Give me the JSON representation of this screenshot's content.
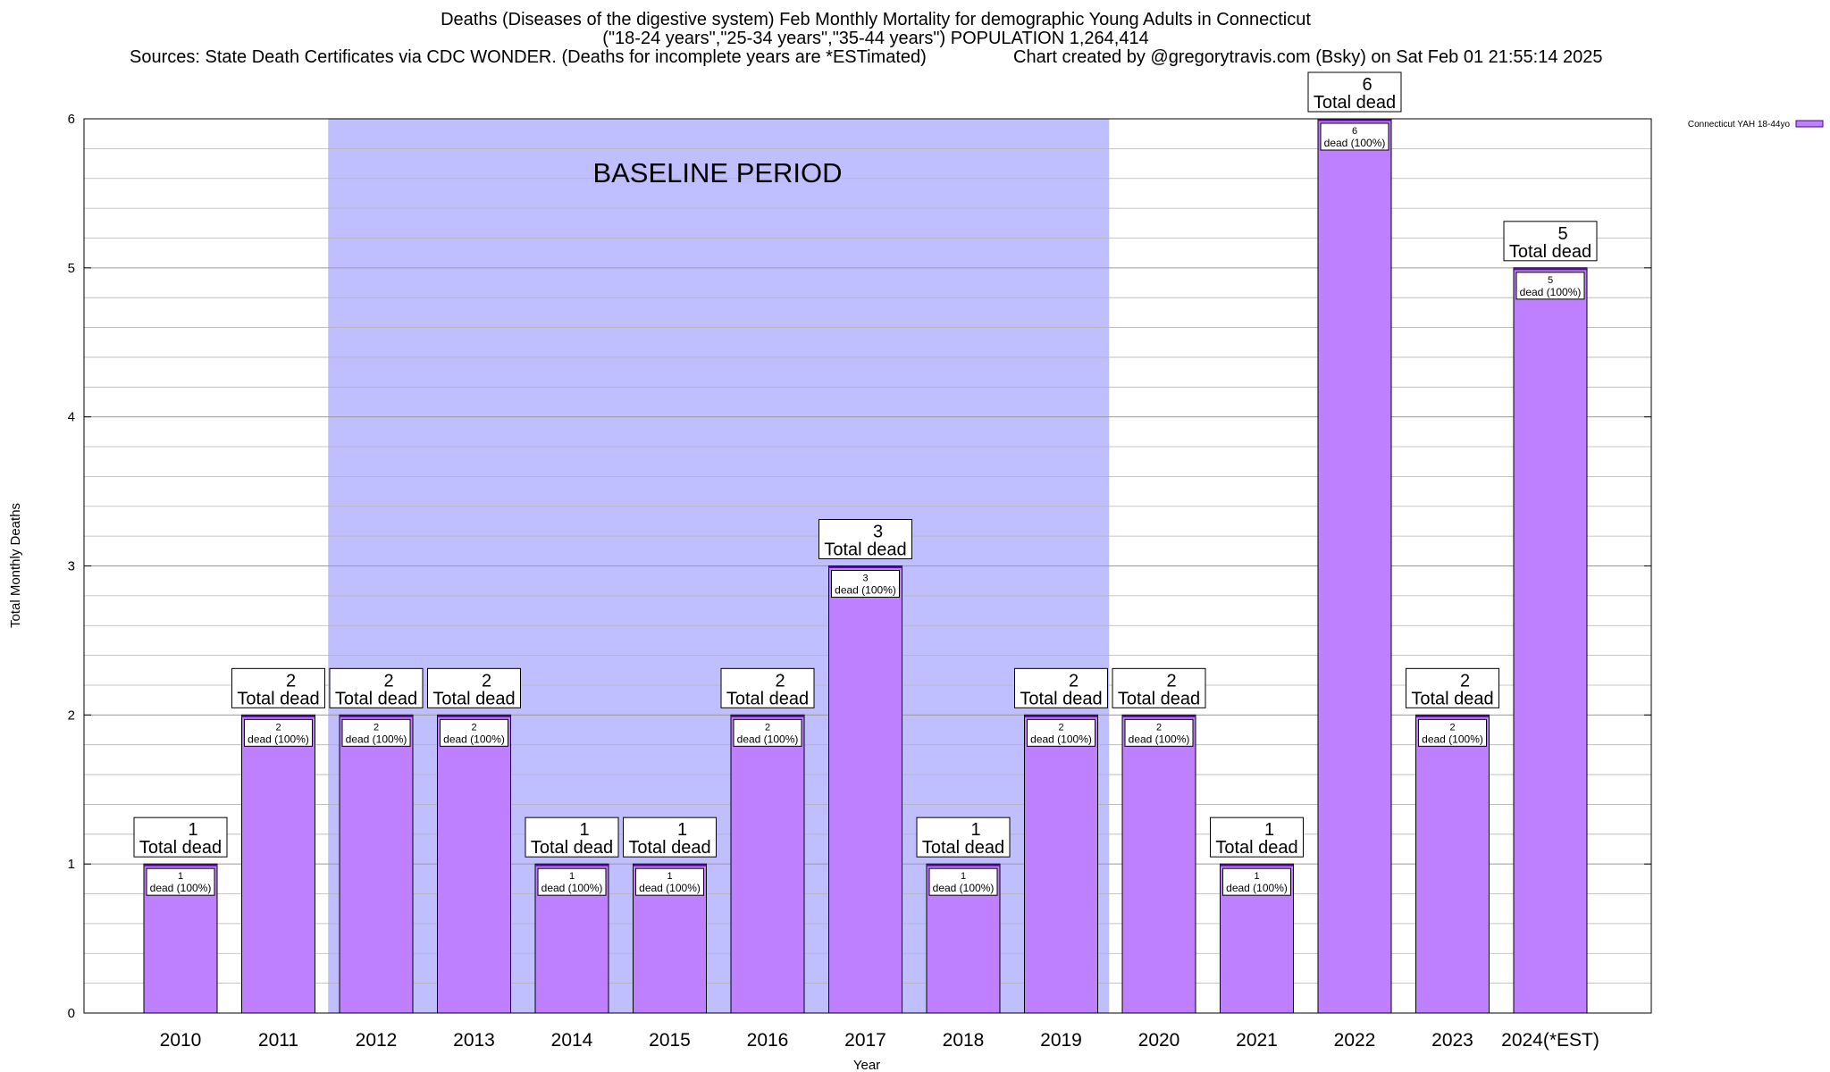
{
  "title": {
    "line1": "Deaths (Diseases of the digestive system) Feb Monthly Mortality for demographic Young Adults in Connecticut",
    "line2": "(\"18-24 years\",\"25-34 years\",\"35-44 years\") POPULATION 1,264,414",
    "sources": "Sources: State Death Certificates via CDC WONDER. (Deaths for incomplete years are *ESTimated)",
    "credit": "Chart created by @gregorytravis.com (Bsky) on Sat Feb 01 21:55:14 2025"
  },
  "chart_data": {
    "type": "bar",
    "xlabel": "Year",
    "ylabel": "Total Monthly Deaths",
    "ylim": [
      0,
      6
    ],
    "yticks": [
      "0",
      "1",
      "2",
      "3",
      "4",
      "5",
      "6"
    ],
    "categories": [
      "2010",
      "2011",
      "2012",
      "2013",
      "2014",
      "2015",
      "2016",
      "2017",
      "2018",
      "2019",
      "2020",
      "2021",
      "2022",
      "2023",
      "2024(*EST)"
    ],
    "series": [
      {
        "name": "Connecticut YAH 18-44yo",
        "values": [
          1,
          2,
          2,
          2,
          1,
          1,
          2,
          3,
          1,
          2,
          2,
          1,
          6,
          2,
          5
        ],
        "color": "#bf80ff"
      }
    ],
    "total_labels": [
      "1",
      "2",
      "2",
      "2",
      "1",
      "1",
      "2",
      "3",
      "1",
      "2",
      "2",
      "1",
      "6",
      "2",
      "5"
    ],
    "total_suffix": "Total dead",
    "inner_counts": [
      "1",
      "2",
      "2",
      "2",
      "1",
      "1",
      "2",
      "3",
      "1",
      "2",
      "2",
      "1",
      "6",
      "2",
      "5"
    ],
    "inner_suffix": "dead (100%)",
    "baseline": {
      "label": "BASELINE PERIOD",
      "from": "2012",
      "to": "2019",
      "color": "#bfbfff"
    },
    "legend_position": "top-right",
    "grid": true
  }
}
